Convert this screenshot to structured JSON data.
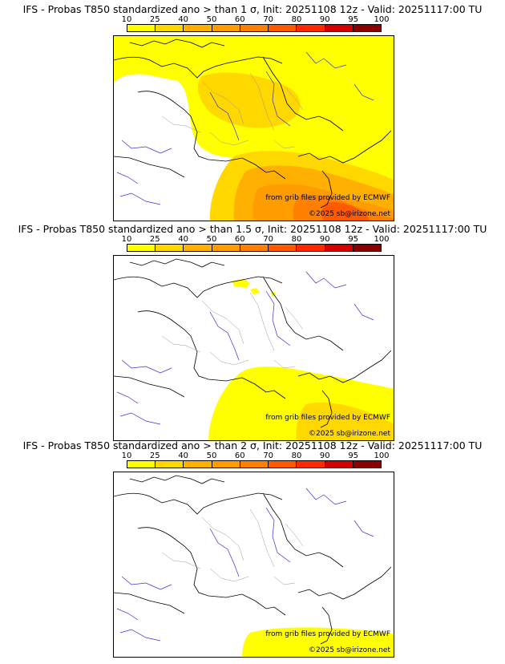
{
  "scale": {
    "labels": [
      "10",
      "25",
      "40",
      "50",
      "60",
      "70",
      "80",
      "90",
      "95",
      "100"
    ],
    "colors": [
      "#ffff00",
      "#ffd800",
      "#ffb000",
      "#ff9c00",
      "#ff8000",
      "#ff5a00",
      "#ff2a00",
      "#d40000",
      "#8a0000"
    ]
  },
  "colors": {
    "land": "#ffffff",
    "rivers": "#3333cc",
    "borders": "#000000",
    "regions": "#9a9a9a"
  },
  "panels": [
    {
      "title": "IFS - Probas T850  standardized ano > than 1 σ, Init: 20251108 12z - Valid: 20251117:00 TU",
      "credit_source": "from grib files provided by ECMWF",
      "credit_copyright": "©2025 sb@irizone.net",
      "field": "sigma_1"
    },
    {
      "title": "IFS - Probas T850  standardized ano > than 1.5 σ, Init: 20251108 12z - Valid: 20251117:00 TU",
      "credit_source": "from grib files provided by ECMWF",
      "credit_copyright": "©2025 sb@irizone.net",
      "field": "sigma_1_5"
    },
    {
      "title": "IFS - Probas T850  standardized ano > than 2 σ, Init: 20251108 12z - Valid: 20251117:00 TU",
      "credit_source": "from grib files provided by ECMWF",
      "credit_copyright": "©2025 sb@irizone.net",
      "field": "sigma_2"
    }
  ]
}
